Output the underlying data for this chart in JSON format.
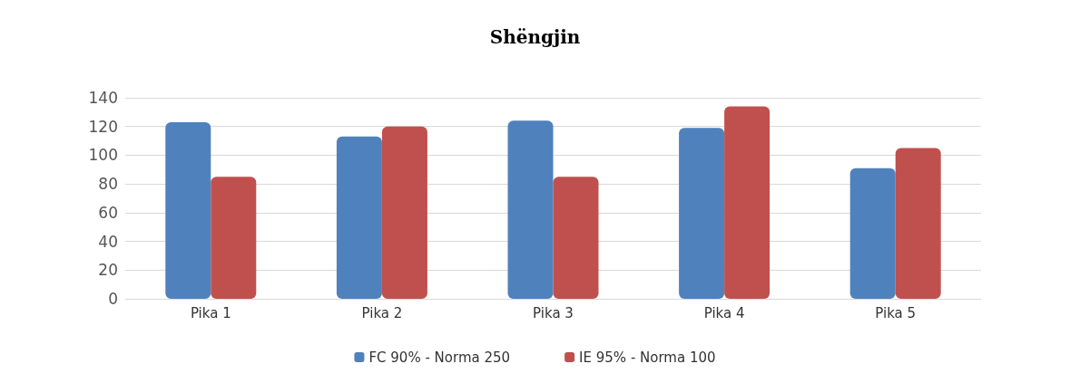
{
  "chart_data": {
    "type": "bar",
    "title": "Shëngjin",
    "categories": [
      "Pika 1",
      "Pika 2",
      "Pika 3",
      "Pika 4",
      "Pika 5"
    ],
    "series": [
      {
        "name": "FC 90% - Norma 250",
        "color": "#4f81bd",
        "values": [
          123,
          113,
          124,
          119,
          91
        ]
      },
      {
        "name": "IE 95% - Norma 100",
        "color": "#c0504d",
        "values": [
          85,
          120,
          85,
          134,
          105
        ]
      }
    ],
    "ylim": [
      0,
      140
    ],
    "yticks": [
      0,
      20,
      40,
      60,
      80,
      100,
      120,
      140
    ],
    "grid": "y",
    "legend": "bottom"
  }
}
